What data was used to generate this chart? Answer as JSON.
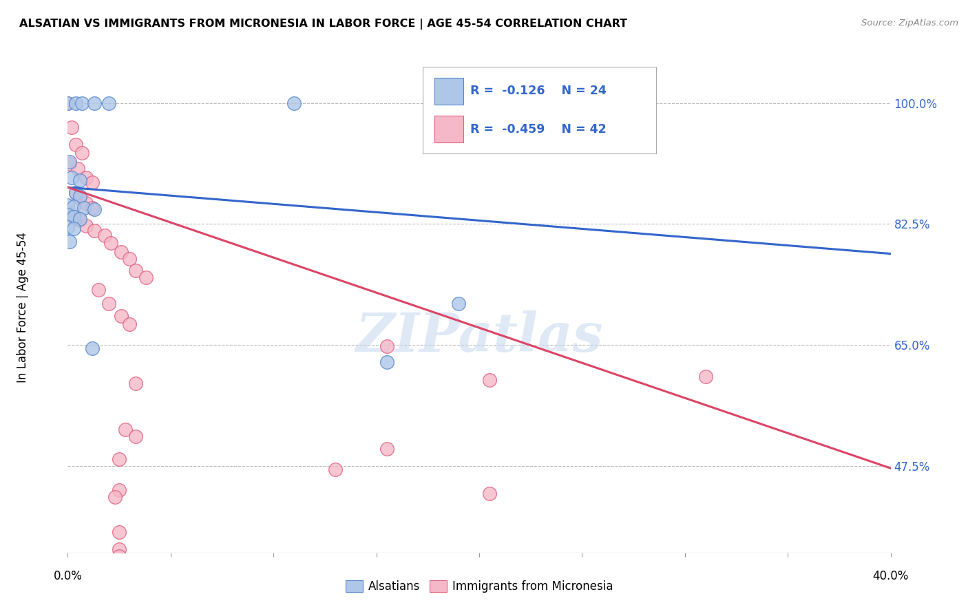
{
  "title": "ALSATIAN VS IMMIGRANTS FROM MICRONESIA IN LABOR FORCE | AGE 45-54 CORRELATION CHART",
  "source": "Source: ZipAtlas.com",
  "ylabel": "In Labor Force | Age 45-54",
  "ytick_vals": [
    0.475,
    0.65,
    0.825,
    1.0
  ],
  "ytick_labels": [
    "47.5%",
    "65.0%",
    "82.5%",
    "100.0%"
  ],
  "xmin": 0.0,
  "xmax": 0.4,
  "ymin": 0.35,
  "ymax": 1.06,
  "legend_R_blue": "-0.126",
  "legend_N_blue": "24",
  "legend_R_pink": "-0.459",
  "legend_N_pink": "42",
  "legend_label_blue": "Alsatians",
  "legend_label_pink": "Immigrants from Micronesia",
  "blue_fill": "#aec6e8",
  "pink_fill": "#f5b8c8",
  "blue_edge": "#5588cc",
  "pink_edge": "#e06080",
  "blue_line_color": "#3366cc",
  "pink_line_color": "#dd4466",
  "watermark": "ZIPatlas",
  "blue_scatter": [
    [
      0.0,
      1.0
    ],
    [
      0.004,
      1.0
    ],
    [
      0.007,
      1.0
    ],
    [
      0.013,
      1.0
    ],
    [
      0.02,
      1.0
    ],
    [
      0.11,
      1.0
    ],
    [
      0.001,
      0.915
    ],
    [
      0.002,
      0.892
    ],
    [
      0.006,
      0.888
    ],
    [
      0.004,
      0.87
    ],
    [
      0.006,
      0.865
    ],
    [
      0.0,
      0.852
    ],
    [
      0.003,
      0.85
    ],
    [
      0.008,
      0.848
    ],
    [
      0.013,
      0.846
    ],
    [
      0.0,
      0.838
    ],
    [
      0.003,
      0.835
    ],
    [
      0.006,
      0.832
    ],
    [
      0.0,
      0.82
    ],
    [
      0.003,
      0.818
    ],
    [
      0.001,
      0.8
    ],
    [
      0.012,
      0.645
    ],
    [
      0.19,
      0.71
    ],
    [
      0.155,
      0.625
    ]
  ],
  "pink_scatter": [
    [
      0.0,
      1.0
    ],
    [
      0.002,
      0.965
    ],
    [
      0.004,
      0.94
    ],
    [
      0.007,
      0.928
    ],
    [
      0.001,
      0.912
    ],
    [
      0.005,
      0.905
    ],
    [
      0.009,
      0.892
    ],
    [
      0.012,
      0.885
    ],
    [
      0.004,
      0.87
    ],
    [
      0.006,
      0.862
    ],
    [
      0.009,
      0.855
    ],
    [
      0.012,
      0.848
    ],
    [
      0.001,
      0.84
    ],
    [
      0.004,
      0.835
    ],
    [
      0.006,
      0.83
    ],
    [
      0.009,
      0.822
    ],
    [
      0.013,
      0.815
    ],
    [
      0.018,
      0.808
    ],
    [
      0.021,
      0.798
    ],
    [
      0.026,
      0.785
    ],
    [
      0.03,
      0.775
    ],
    [
      0.033,
      0.758
    ],
    [
      0.038,
      0.748
    ],
    [
      0.015,
      0.73
    ],
    [
      0.02,
      0.71
    ],
    [
      0.026,
      0.692
    ],
    [
      0.03,
      0.68
    ],
    [
      0.155,
      0.648
    ],
    [
      0.205,
      0.6
    ],
    [
      0.033,
      0.595
    ],
    [
      0.028,
      0.528
    ],
    [
      0.033,
      0.518
    ],
    [
      0.025,
      0.485
    ],
    [
      0.155,
      0.5
    ],
    [
      0.025,
      0.44
    ],
    [
      0.13,
      0.47
    ],
    [
      0.023,
      0.43
    ],
    [
      0.31,
      0.605
    ],
    [
      0.205,
      0.435
    ],
    [
      0.025,
      0.38
    ],
    [
      0.025,
      0.355
    ],
    [
      0.025,
      0.345
    ]
  ],
  "blue_line_x": [
    0.0,
    0.4
  ],
  "blue_line_y": [
    0.878,
    0.782
  ],
  "pink_line_x": [
    0.0,
    0.4
  ],
  "pink_line_y": [
    0.878,
    0.472
  ]
}
